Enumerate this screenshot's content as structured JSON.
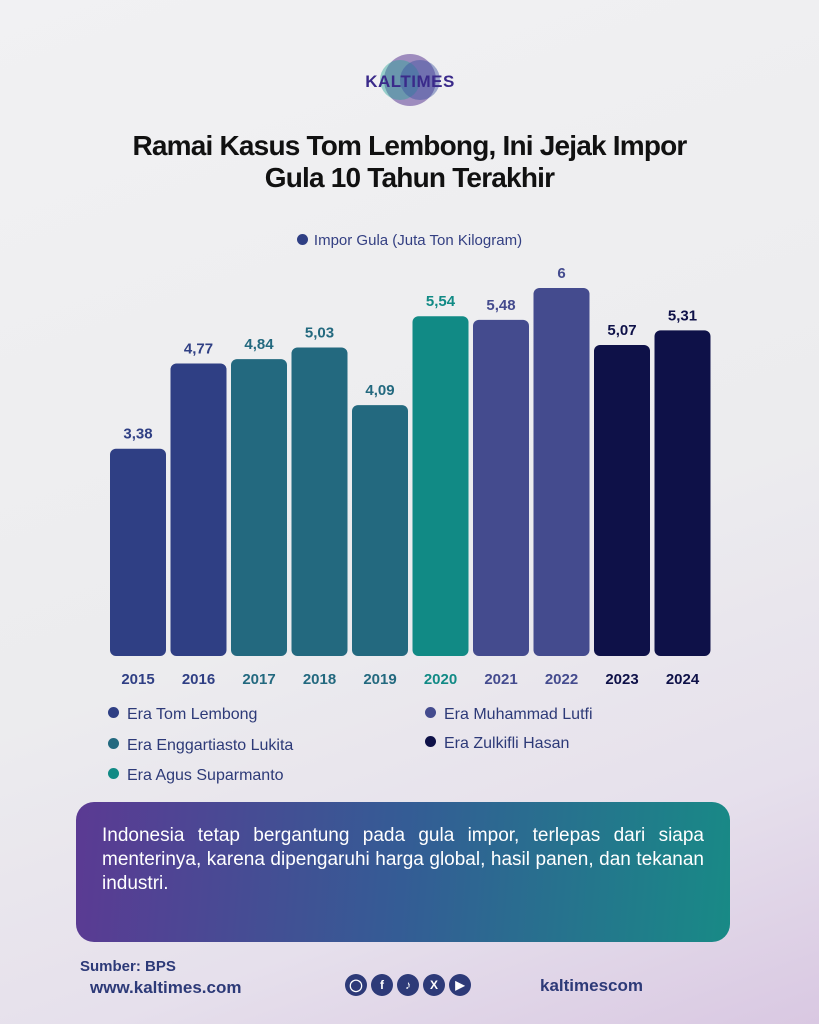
{
  "brand": {
    "name": "KALTIMES"
  },
  "title_line1": "Ramai Kasus Tom Lembong, Ini Jejak Impor",
  "title_line2": "Gula 10 Tahun Terakhir",
  "chart_data": {
    "type": "bar",
    "title": "Ramai Kasus Tom Lembong, Ini Jejak Impor Gula 10 Tahun Terakhir",
    "series_name": "Impor Gula (Juta Ton Kilogram)",
    "categories": [
      "2015",
      "2016",
      "2017",
      "2018",
      "2019",
      "2020",
      "2021",
      "2022",
      "2023",
      "2024"
    ],
    "values": [
      3.38,
      4.77,
      4.84,
      5.03,
      4.09,
      5.54,
      5.48,
      6,
      5.07,
      5.31
    ],
    "value_labels": [
      "3,38",
      "4,77",
      "4,84",
      "5,03",
      "4,09",
      "5,54",
      "5,48",
      "6",
      "5,07",
      "5,31"
    ],
    "era_index": [
      0,
      0,
      1,
      1,
      1,
      2,
      3,
      3,
      4,
      4
    ],
    "ylim": [
      0,
      6
    ],
    "grid": false,
    "legend_position": "top-center"
  },
  "eras": [
    {
      "name": "Era Tom Lembong",
      "color": "#2f3f84"
    },
    {
      "name": "Era Enggartiasto Lukita",
      "color": "#23697f"
    },
    {
      "name": "Era Agus Suparmanto",
      "color": "#118a85"
    },
    {
      "name": "Era Muhammad Lutfi",
      "color": "#444b8e"
    },
    {
      "name": "Era Zulkifli Hasan",
      "color": "#0e1148"
    }
  ],
  "series_color": "#2f3f84",
  "info_text": "Indonesia tetap bergantung pada gula impor, terlepas dari siapa menterinya, karena dipengaruhi harga global, hasil panen, dan tekanan industri.",
  "footer": {
    "source": "Sumber: BPS",
    "website": "www.kaltimes.com",
    "handle": "kaltimescom",
    "social_icons": [
      "instagram-icon",
      "facebook-icon",
      "tiktok-icon",
      "x-icon",
      "youtube-icon"
    ]
  }
}
